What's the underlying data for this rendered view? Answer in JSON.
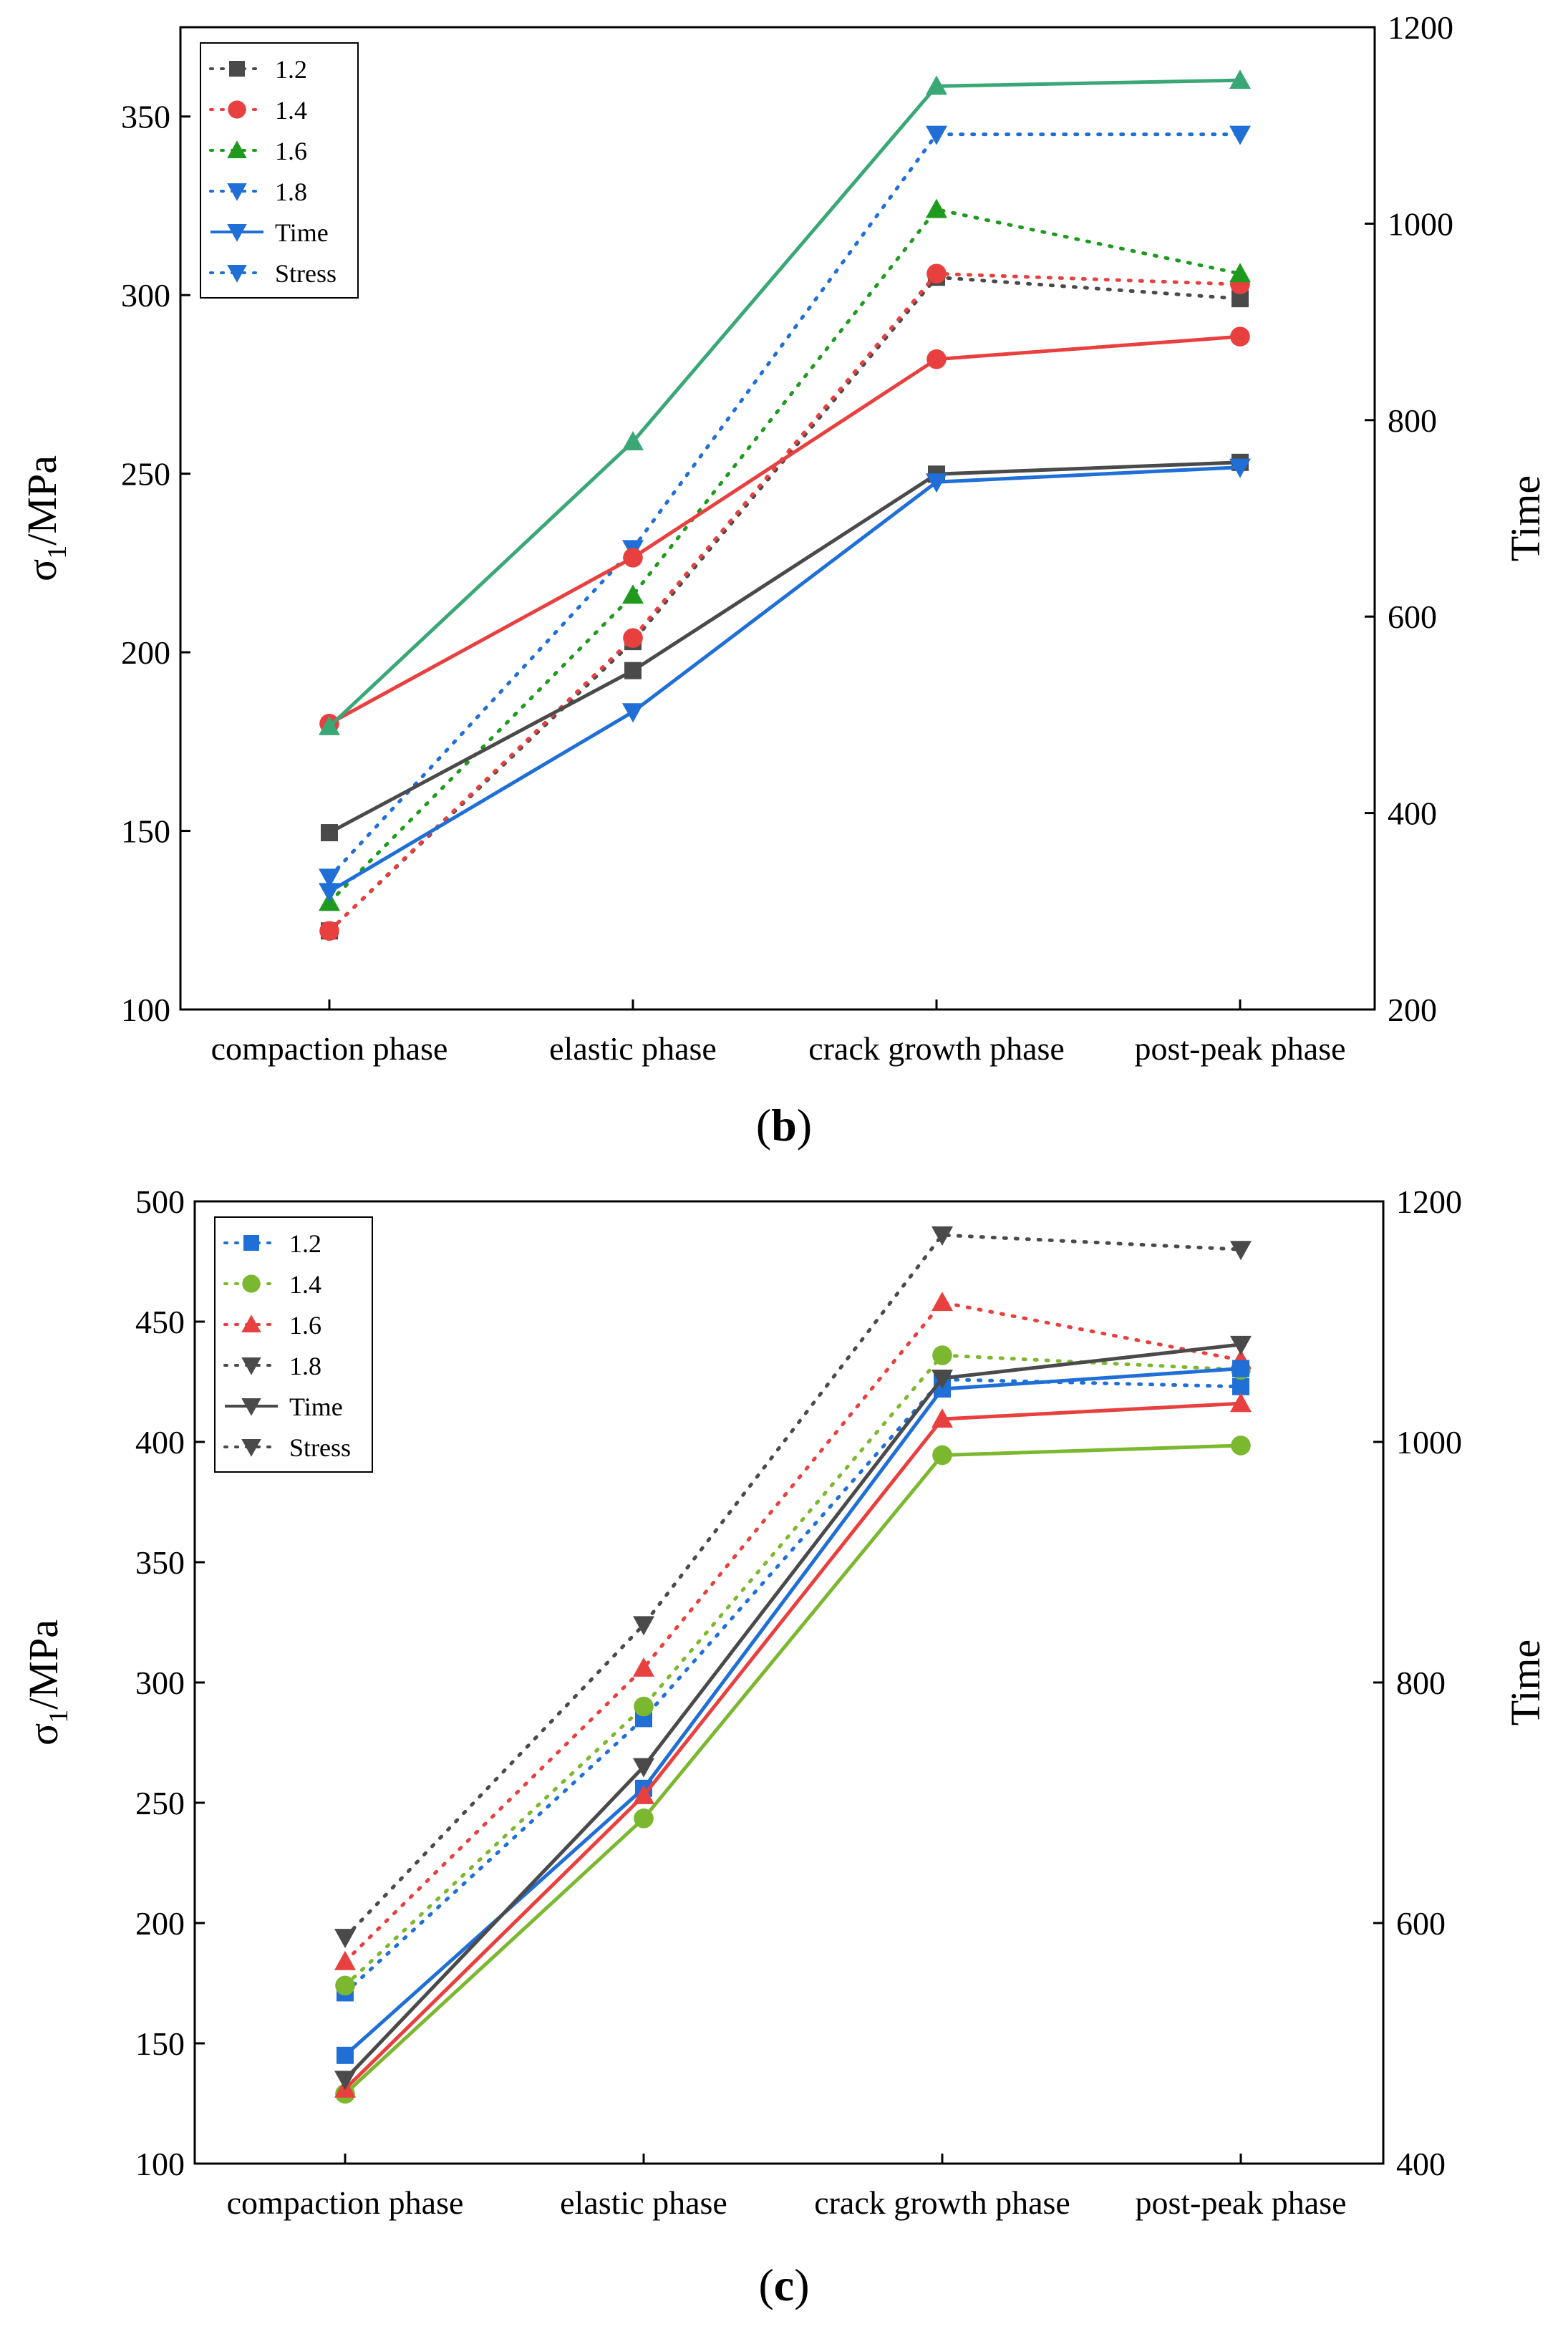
{
  "chart_data": [
    {
      "id": "b",
      "type": "line",
      "caption": "(b)",
      "caption_letter": "b",
      "categories": [
        "compaction phase",
        "elastic phase",
        "crack growth phase",
        "post-peak phase"
      ],
      "ylabel_main": "σ",
      "ylabel_sub": "1",
      "ylabel_rest": "/MPa",
      "y2label": "Time",
      "ylim": [
        100,
        375
      ],
      "y2lim": [
        200,
        1200
      ],
      "yticks": [
        100,
        150,
        200,
        250,
        300,
        350
      ],
      "y2ticks": [
        200,
        400,
        600,
        800,
        1000,
        1200
      ],
      "legend": {
        "placement": "top-left",
        "entries": [
          {
            "label": "1.2",
            "color": "#4a4a4a",
            "marker": "square",
            "style": "dotted"
          },
          {
            "label": "1.4",
            "color": "#e8403f",
            "marker": "circle",
            "style": "dotted"
          },
          {
            "label": "1.6",
            "color": "#1f9a1f",
            "marker": "triangle-up",
            "style": "dotted"
          },
          {
            "label": "1.8",
            "color": "#1f6fd6",
            "marker": "triangle-down",
            "style": "dotted"
          },
          {
            "label": "Time",
            "color": "#1f6fd6",
            "marker": "triangle-down",
            "style": "solid"
          },
          {
            "label": "Stress",
            "color": "#1f6fd6",
            "marker": "triangle-down",
            "style": "dotted"
          }
        ]
      },
      "series": [
        {
          "name": "1.2 Stress",
          "axis": "left",
          "style": "dotted",
          "color": "#4a4a4a",
          "marker": "square",
          "values": [
            122,
            203,
            305,
            299
          ]
        },
        {
          "name": "1.4 Stress",
          "axis": "left",
          "style": "dotted",
          "color": "#e8403f",
          "marker": "circle",
          "values": [
            122,
            204,
            306,
            303
          ]
        },
        {
          "name": "1.6 Stress",
          "axis": "left",
          "style": "dotted",
          "color": "#1f9a1f",
          "marker": "triangle-up",
          "values": [
            130,
            216,
            324,
            306
          ]
        },
        {
          "name": "1.8 Stress",
          "axis": "left",
          "style": "dotted",
          "color": "#1f6fd6",
          "marker": "triangle-down",
          "values": [
            137,
            229,
            345,
            345
          ]
        },
        {
          "name": "1.2 Time",
          "axis": "right",
          "style": "solid",
          "color": "#4a4a4a",
          "marker": "square",
          "values": [
            380,
            545,
            745,
            757
          ]
        },
        {
          "name": "1.4 Time",
          "axis": "right",
          "style": "solid",
          "color": "#e8403f",
          "marker": "circle",
          "values": [
            491,
            660,
            862,
            885
          ]
        },
        {
          "name": "1.6 Time",
          "axis": "right",
          "style": "solid",
          "color": "#3aa876",
          "marker": "triangle-up",
          "values": [
            488,
            778,
            1140,
            1146
          ]
        },
        {
          "name": "1.8 Time",
          "axis": "right",
          "style": "solid",
          "color": "#1f6fd6",
          "marker": "triangle-down",
          "values": [
            320,
            503,
            737,
            752
          ]
        }
      ]
    },
    {
      "id": "c",
      "type": "line",
      "caption": "(c)",
      "caption_letter": "c",
      "categories": [
        "compaction phase",
        "elastic phase",
        "crack growth phase",
        "post-peak phase"
      ],
      "ylabel_main": "σ",
      "ylabel_sub": "1",
      "ylabel_rest": "/MPa",
      "y2label": "Time",
      "ylim": [
        100,
        500
      ],
      "y2lim": [
        400,
        1200
      ],
      "yticks": [
        100,
        150,
        200,
        250,
        300,
        350,
        400,
        450,
        500
      ],
      "y2ticks": [
        400,
        600,
        800,
        1000,
        1200
      ],
      "legend": {
        "placement": "top-left",
        "entries": [
          {
            "label": "1.2",
            "color": "#1f6fd6",
            "marker": "square",
            "style": "dotted"
          },
          {
            "label": "1.4",
            "color": "#7cb82f",
            "marker": "circle",
            "style": "dotted"
          },
          {
            "label": "1.6",
            "color": "#e8403f",
            "marker": "triangle-up",
            "style": "dotted"
          },
          {
            "label": "1.8",
            "color": "#4a4a4a",
            "marker": "triangle-down",
            "style": "dotted"
          },
          {
            "label": "Time",
            "color": "#4a4a4a",
            "marker": "triangle-down",
            "style": "solid"
          },
          {
            "label": "Stress",
            "color": "#4a4a4a",
            "marker": "triangle-down",
            "style": "dotted"
          }
        ]
      },
      "series": [
        {
          "name": "1.2 Stress",
          "axis": "left",
          "style": "dotted",
          "color": "#1f6fd6",
          "marker": "square",
          "values": [
            171,
            285,
            426,
            423
          ]
        },
        {
          "name": "1.4 Stress",
          "axis": "left",
          "style": "dotted",
          "color": "#7cb82f",
          "marker": "circle",
          "values": [
            174,
            290,
            436,
            430
          ]
        },
        {
          "name": "1.6 Stress",
          "axis": "left",
          "style": "dotted",
          "color": "#e8403f",
          "marker": "triangle-up",
          "values": [
            184,
            306,
            458,
            434
          ]
        },
        {
          "name": "1.8 Stress",
          "axis": "left",
          "style": "dotted",
          "color": "#4a4a4a",
          "marker": "triangle-down",
          "values": [
            194,
            324,
            486,
            480
          ]
        },
        {
          "name": "1.2 Time",
          "axis": "right",
          "style": "solid",
          "color": "#1f6fd6",
          "marker": "square",
          "values": [
            490,
            712,
            1044,
            1061
          ]
        },
        {
          "name": "1.4 Time",
          "axis": "right",
          "style": "solid",
          "color": "#7cb82f",
          "marker": "circle",
          "values": [
            458,
            687,
            989,
            997
          ]
        },
        {
          "name": "1.6 Time",
          "axis": "right",
          "style": "solid",
          "color": "#e8403f",
          "marker": "triangle-up",
          "values": [
            462,
            706,
            1019,
            1032
          ]
        },
        {
          "name": "1.8 Time",
          "axis": "right",
          "style": "solid",
          "color": "#4a4a4a",
          "marker": "triangle-down",
          "values": [
            470,
            730,
            1053,
            1081
          ]
        }
      ]
    }
  ]
}
